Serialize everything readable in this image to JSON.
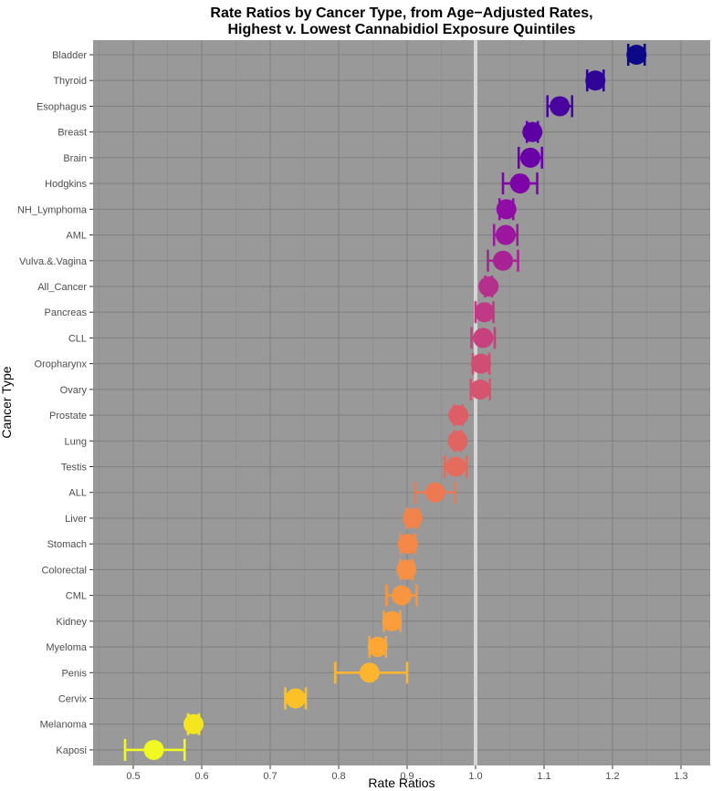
{
  "chart_data": {
    "type": "scatter",
    "title_lines": [
      "Rate Ratios by Cancer Type, from Age−Adjusted Rates,",
      "Highest v. Lowest Cannabidiol Exposure Quintiles"
    ],
    "xlabel": "Rate Ratios",
    "ylabel": "Cancer Type",
    "xlim": [
      0.44,
      1.34
    ],
    "xticks": [
      "0.5",
      "0.6",
      "0.7",
      "0.8",
      "0.9",
      "1.0",
      "1.1",
      "1.2",
      "1.3"
    ],
    "xtick_values": [
      0.5,
      0.6,
      0.7,
      0.8,
      0.9,
      1.0,
      1.1,
      1.2,
      1.3
    ],
    "reference_line": 1.0,
    "grid": true,
    "background": "#999999",
    "categories": [
      "Bladder",
      "Thyroid",
      "Esophagus",
      "Breast",
      "Brain",
      "Hodgkins",
      "NH_Lymphoma",
      "AML",
      "Vulva.&.Vagina",
      "All_Cancer",
      "Pancreas",
      "CLL",
      "Oropharynx",
      "Ovary",
      "Prostate",
      "Lung",
      "Testis",
      "ALL",
      "Liver",
      "Stomach",
      "Colorectal",
      "CML",
      "Kidney",
      "Myeloma",
      "Penis",
      "Cervix",
      "Melanoma",
      "Kaposi"
    ],
    "values": [
      1.235,
      1.175,
      1.123,
      1.083,
      1.08,
      1.065,
      1.045,
      1.044,
      1.04,
      1.019,
      1.013,
      1.011,
      1.008,
      1.007,
      0.975,
      0.974,
      0.971,
      0.941,
      0.908,
      0.901,
      0.899,
      0.892,
      0.878,
      0.857,
      0.845,
      0.737,
      0.588,
      0.53
    ],
    "lower": [
      1.223,
      1.163,
      1.105,
      1.075,
      1.063,
      1.04,
      1.035,
      1.027,
      1.018,
      1.014,
      1.0,
      0.994,
      0.996,
      0.993,
      0.969,
      0.969,
      0.955,
      0.912,
      0.9,
      0.89,
      0.89,
      0.87,
      0.866,
      0.845,
      0.795,
      0.722,
      0.58,
      0.488
    ],
    "upper": [
      1.247,
      1.187,
      1.141,
      1.091,
      1.097,
      1.09,
      1.055,
      1.061,
      1.062,
      1.024,
      1.026,
      1.028,
      1.02,
      1.021,
      0.981,
      0.979,
      0.987,
      0.97,
      0.916,
      0.912,
      0.908,
      0.914,
      0.89,
      0.869,
      0.9,
      0.752,
      0.596,
      0.575
    ],
    "colors": [
      "#0d0887",
      "#2e0595",
      "#4903a0",
      "#5d01a6",
      "#6a00a8",
      "#7e03a8",
      "#8f0da4",
      "#9c179e",
      "#a82296",
      "#b52f8c",
      "#bf3984",
      "#c6417d",
      "#d04d73",
      "#d5546e",
      "#dd5e66",
      "#e16462",
      "#e56b5d",
      "#ed7953",
      "#f1834c",
      "#f48849",
      "#f69044",
      "#f89540",
      "#fa9e3b",
      "#fca636",
      "#fdb42f",
      "#fbc127",
      "#f4e61e",
      "#f0f921"
    ]
  }
}
